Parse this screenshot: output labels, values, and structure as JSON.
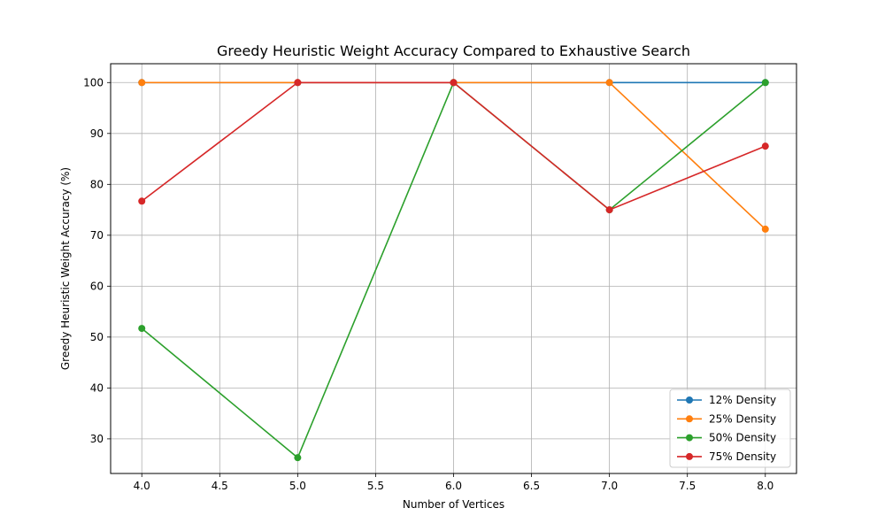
{
  "chart_data": {
    "type": "line",
    "title": "Greedy Heuristic Weight Accuracy Compared to Exhaustive Search",
    "xlabel": "Number of Vertices",
    "ylabel": "Greedy Heuristic Weight Accuracy (%)",
    "xlim": [
      3.8,
      8.2
    ],
    "ylim": [
      23.2,
      103.7
    ],
    "xticks": [
      4.0,
      4.5,
      5.0,
      5.5,
      6.0,
      6.5,
      7.0,
      7.5,
      8.0
    ],
    "xtick_labels": [
      "4.0",
      "4.5",
      "5.0",
      "5.5",
      "6.0",
      "6.5",
      "7.0",
      "7.5",
      "8.0"
    ],
    "yticks": [
      30,
      40,
      50,
      60,
      70,
      80,
      90,
      100
    ],
    "ytick_labels": [
      "30",
      "40",
      "50",
      "60",
      "70",
      "80",
      "90",
      "100"
    ],
    "grid": true,
    "legend_position": "lower-right",
    "x": [
      4,
      5,
      6,
      7,
      8
    ],
    "series": [
      {
        "name": "12% Density",
        "color": "#1f77b4",
        "values": [
          100,
          100,
          100,
          100,
          100
        ]
      },
      {
        "name": "25% Density",
        "color": "#ff7f0e",
        "values": [
          100,
          100,
          100,
          100,
          71.2
        ]
      },
      {
        "name": "50% Density",
        "color": "#2ca02c",
        "values": [
          51.7,
          26.3,
          100,
          75,
          100
        ]
      },
      {
        "name": "75% Density",
        "color": "#d62728",
        "values": [
          76.7,
          100,
          100,
          75,
          87.5
        ]
      }
    ]
  }
}
